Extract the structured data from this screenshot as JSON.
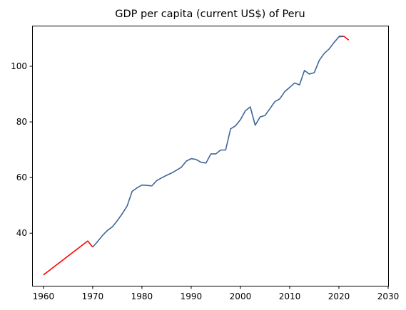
{
  "chart_data": {
    "type": "line",
    "title": "GDP per capita (current US$) of Peru",
    "xlabel": "",
    "ylabel": "",
    "xlim": [
      1957.7,
      2030
    ],
    "ylim": [
      21.1,
      114.6
    ],
    "xticks": [
      1960,
      1970,
      1980,
      1990,
      2000,
      2010,
      2020,
      2030
    ],
    "yticks": [
      40,
      60,
      80,
      100
    ],
    "grid": false,
    "legend": "none",
    "series": [
      {
        "color": "#ff0000",
        "x": [
          1960,
          1969,
          1970
        ],
        "y": [
          25.0,
          37.2,
          35.0
        ]
      },
      {
        "color": "#ff0000",
        "x": [
          2020,
          2021,
          2022
        ],
        "y": [
          110.8,
          110.8,
          109.4
        ]
      },
      {
        "color": "#3e679a",
        "x": [
          1970,
          1971,
          1972,
          1973,
          1974,
          1975,
          1976,
          1977,
          1978,
          1979,
          1980,
          1981,
          1982,
          1983,
          1984,
          1985,
          1986,
          1987,
          1988,
          1989,
          1990,
          1991,
          1992,
          1993,
          1994,
          1995,
          1996,
          1997,
          1998,
          1999,
          2000,
          2001,
          2002,
          2003,
          2004,
          2005,
          2006,
          2007,
          2008,
          2009,
          2010,
          2011,
          2012,
          2013,
          2014,
          2015,
          2016,
          2017,
          2018,
          2019,
          2020,
          2021
        ],
        "y": [
          35.0,
          37.0,
          39.2,
          41.0,
          42.3,
          44.5,
          47.0,
          49.8,
          55.0,
          56.3,
          57.3,
          57.2,
          57.0,
          58.9,
          59.9,
          60.8,
          61.6,
          62.6,
          63.7,
          65.9,
          66.8,
          66.5,
          65.5,
          65.2,
          68.5,
          68.5,
          69.9,
          69.9,
          77.5,
          78.6,
          80.8,
          84.0,
          85.4,
          78.8,
          81.8,
          82.3,
          84.8,
          87.3,
          88.3,
          90.9,
          92.4,
          94.0,
          93.3,
          98.5,
          97.2,
          97.7,
          102.1,
          104.6,
          106.2,
          108.5,
          110.6,
          110.7
        ]
      }
    ]
  }
}
